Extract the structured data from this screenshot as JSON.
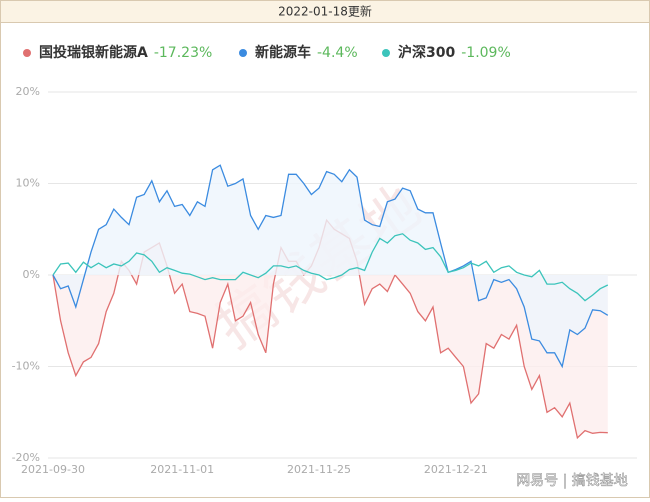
{
  "header": "2022-01-18更新",
  "watermark": "搞钱基地",
  "source": "网易号 | 搞钱基地",
  "chart_data": {
    "type": "line",
    "categories": [
      "2021-09-30",
      null,
      null,
      null,
      null,
      null,
      null,
      null,
      null,
      null,
      null,
      null,
      null,
      null,
      null,
      null,
      null,
      "2021-11-01",
      null,
      null,
      null,
      null,
      null,
      null,
      null,
      null,
      null,
      null,
      null,
      null,
      null,
      null,
      null,
      null,
      null,
      "2021-11-25",
      null,
      null,
      null,
      null,
      null,
      null,
      null,
      null,
      null,
      null,
      null,
      null,
      null,
      null,
      null,
      null,
      null,
      "2021-12-21",
      null,
      null,
      null,
      null,
      null,
      null,
      null,
      null,
      null,
      null,
      null,
      null,
      null,
      null,
      null,
      null,
      null,
      null,
      null,
      null
    ],
    "ylim": [
      -20,
      20
    ],
    "yticks": [
      {
        "value": -20,
        "label": "-20%"
      },
      {
        "value": -10,
        "label": "-10%"
      },
      {
        "value": 0,
        "label": "0%"
      },
      {
        "value": 10,
        "label": "10%"
      },
      {
        "value": 20,
        "label": "20%"
      }
    ],
    "grid": true,
    "series": [
      {
        "name": "国投瑞银新能源A",
        "color": "#e07070",
        "fill": "#fdeeee",
        "change_label": "-17.23%",
        "values": [
          0,
          -5,
          -8.5,
          -11,
          -9.5,
          -9,
          -7.5,
          -4,
          -2,
          1.5,
          0.5,
          -1,
          2.5,
          3,
          3.5,
          1,
          -2,
          -1,
          -4,
          -4.2,
          -4.5,
          -8,
          -3,
          -1,
          -5,
          -4.5,
          -3,
          -6.5,
          -8.5,
          -1,
          3,
          1.5,
          1.5,
          0,
          1,
          3,
          6,
          5,
          4.5,
          4,
          1.5,
          -3.2,
          -1.5,
          -1,
          -1.8,
          0,
          -1,
          -2,
          -4,
          -5,
          -3.5,
          -8.5,
          -8,
          -9,
          -10,
          -14,
          -13,
          -7.5,
          -8,
          -6.5,
          -7,
          -5.5,
          -10,
          -12.5,
          -11,
          -15,
          -14.5,
          -15.5,
          -14,
          -17.8,
          -17,
          -17.3,
          -17.2,
          -17.23
        ]
      },
      {
        "name": "新能源车",
        "color": "#3b8be0",
        "fill": "#eef5fd",
        "change_label": "-4.4%",
        "values": [
          0,
          -1.5,
          -1.2,
          -3.5,
          -0.5,
          2.5,
          5,
          5.5,
          7.2,
          6.3,
          5.5,
          8.5,
          8.8,
          10.3,
          8,
          9.2,
          7.5,
          7.7,
          6.5,
          8,
          7.5,
          11.5,
          12,
          9.7,
          10,
          10.5,
          6.5,
          5,
          6.5,
          6.3,
          6.5,
          11,
          11,
          10,
          8.8,
          9.5,
          11.3,
          11,
          10.2,
          11.5,
          10.7,
          6,
          5.5,
          5.3,
          8,
          8.3,
          9.5,
          9.2,
          7.2,
          6.8,
          6.8,
          3.5,
          0.3,
          0.6,
          1,
          1.5,
          -2.8,
          -2.5,
          -0.5,
          -0.8,
          -0.5,
          -1.5,
          -3.5,
          -7,
          -7.2,
          -8.5,
          -8.5,
          -10,
          -6,
          -6.5,
          -5.8,
          -3.8,
          -3.9,
          -4.4
        ]
      },
      {
        "name": "沪深300",
        "color": "#3cc4bb",
        "change_label": "-1.09%",
        "values": [
          0,
          1.2,
          1.3,
          0.3,
          1.4,
          0.8,
          1.3,
          0.8,
          1.2,
          1,
          1.5,
          2.4,
          2.2,
          1.5,
          0.3,
          0.8,
          0.5,
          0.2,
          0.1,
          -0.2,
          -0.5,
          -0.3,
          -0.5,
          -0.5,
          -0.5,
          0.3,
          0,
          -0.3,
          0.2,
          1,
          1,
          0.8,
          1,
          0.5,
          0.2,
          0,
          -0.5,
          -0.3,
          0,
          0.6,
          0.8,
          0.5,
          2.5,
          4,
          3.5,
          4.3,
          4.5,
          3.8,
          3.5,
          2.8,
          3,
          2,
          0.3,
          0.5,
          0.8,
          1.3,
          1,
          1.5,
          0.3,
          0.8,
          1,
          0.3,
          0,
          -0.2,
          0.5,
          -1,
          -1,
          -0.8,
          -1.5,
          -2,
          -2.8,
          -2.2,
          -1.5,
          -1.09
        ]
      }
    ]
  }
}
